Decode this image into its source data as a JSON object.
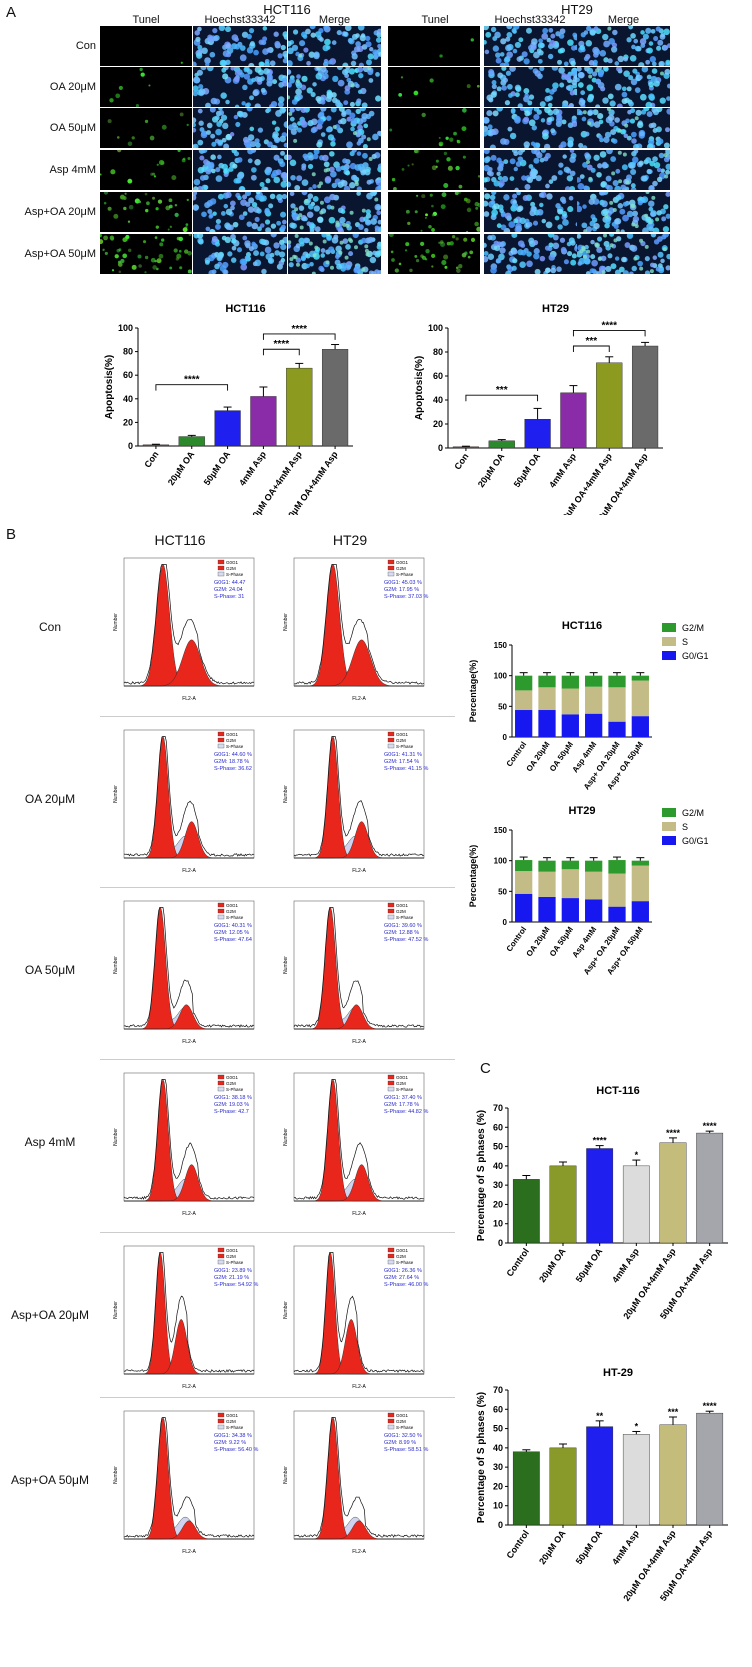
{
  "panelA": {
    "letter": "A",
    "lines": [
      {
        "title": "HCT116",
        "cols": [
          "Tunel",
          "Hoechst33342",
          "Merge"
        ]
      },
      {
        "title": "HT29",
        "cols": [
          "Tunel",
          "Hoechst33342",
          "Merge"
        ]
      }
    ],
    "rows": [
      "Con",
      "OA 20μM",
      "OA 50μM",
      "Asp 4mM",
      "Asp+OA 20μM",
      "Asp+OA 50μM"
    ]
  },
  "apoptosis": [
    {
      "title": "HCT116",
      "ylabel": "Apoptosis(%)",
      "ylim": [
        0,
        100
      ],
      "yticks": [
        0,
        20,
        40,
        60,
        80,
        100
      ],
      "categories": [
        "Con",
        "20μM OA",
        "50μM OA",
        "4mM Asp",
        "20μM OA+4mM Asp",
        "50μM OA+4mM Asp"
      ],
      "values": [
        1,
        8,
        30,
        42,
        66,
        82
      ],
      "errors": [
        0.5,
        1,
        3,
        8,
        4,
        4
      ],
      "colors": [
        "#d62020",
        "#2c8a2c",
        "#1f1fef",
        "#8a2ba8",
        "#8c9a20",
        "#6a6a6a"
      ],
      "brackets": [
        {
          "from": 0,
          "to": 2,
          "label": "****",
          "level": 52
        },
        {
          "from": 3,
          "to": 4,
          "label": "****",
          "level": 82
        },
        {
          "from": 3,
          "to": 5,
          "label": "****",
          "level": 95
        }
      ]
    },
    {
      "title": "HT29",
      "ylabel": "Apoptosis(%)",
      "ylim": [
        0,
        100
      ],
      "yticks": [
        0,
        20,
        40,
        60,
        80,
        100
      ],
      "categories": [
        "Con",
        "20μM OA",
        "50μM OA",
        "4mM Asp",
        "20μM OA+4mM Asp",
        "50μM OA+4mM Asp"
      ],
      "values": [
        1,
        6,
        24,
        46,
        71,
        85
      ],
      "errors": [
        0.5,
        1,
        9,
        6,
        5,
        3
      ],
      "colors": [
        "#d62020",
        "#2c8a2c",
        "#1f1fef",
        "#8a2ba8",
        "#8c9a20",
        "#6a6a6a"
      ],
      "brackets": [
        {
          "from": 0,
          "to": 2,
          "label": "***",
          "level": 44
        },
        {
          "from": 3,
          "to": 4,
          "label": "***",
          "level": 85
        },
        {
          "from": 3,
          "to": 5,
          "label": "****",
          "level": 98
        }
      ]
    }
  ],
  "panelB": {
    "letter": "B",
    "cols": [
      "HCT116",
      "HT29"
    ],
    "rows": [
      "Con",
      "OA 20μM",
      "OA 50μM",
      "Asp 4mM",
      "Asp+OA 20μM",
      "Asp+OA 50μM"
    ],
    "legend": [
      "G0G1",
      "G2M",
      "S-Phase"
    ],
    "xlabel": "FL2-A",
    "ylabel": "Number",
    "stats": [
      [
        "G0G1: 44.47",
        "G2M: 24.04",
        "S-Phase: 31",
        "G0G1: 45.03 %",
        "G2M: 17.95 %",
        "S-Phase: 37.03 %"
      ],
      [
        "G0G1: 44.60 %",
        "G2M: 18.78 %",
        "S-Phase: 36.62",
        "G0G1: 41.31 %",
        "G2M: 17.54 %",
        "S-Phase: 41.15 %"
      ],
      [
        "G0G1: 40.31 %",
        "G2M: 12.05 %",
        "S-Phase: 47.64",
        "G0G1: 39.60 %",
        "G2M: 12.88 %",
        "S-Phase: 47.52 %"
      ],
      [
        "G0G1: 38.18 %",
        "G2M: 19.03 %",
        "S-Phase: 42.7",
        "G0G1: 37.40 %",
        "G2M: 17.78 %",
        "S-Phase: 44.82 %"
      ],
      [
        "G0G1: 23.89 %",
        "G2M: 21.19 %",
        "S-Phase: 54.92 %",
        "G0G1: 26.36 %",
        "G2M: 27.64 %",
        "S-Phase: 46.00 %"
      ],
      [
        "G0G1: 34.38 %",
        "G2M: 9.22 %",
        "S-Phase: 56.40 %",
        "G0G1: 32.50 %",
        "G2M: 8.99 %",
        "S-Phase: 58.51 %"
      ]
    ]
  },
  "stacked": [
    {
      "title": "HCT116",
      "ylabel": "Percentage(%)",
      "ylim": [
        0,
        150
      ],
      "yticks": [
        0,
        50,
        100,
        150
      ],
      "categories": [
        "Control",
        "OA 20μM",
        "OA 50μM",
        "Asp 4mM",
        "Asp+ OA 20μM",
        "Asp+ OA 50μM"
      ],
      "legend": [
        "G2/M",
        "S",
        "G0/G1"
      ],
      "g0g1": [
        44,
        44,
        37,
        38,
        25,
        34
      ],
      "s": [
        32,
        37,
        42,
        44,
        56,
        58
      ],
      "g2m": [
        24,
        19,
        21,
        18,
        19,
        8
      ]
    },
    {
      "title": "HT29",
      "ylabel": "Percentage(%)",
      "ylim": [
        0,
        150
      ],
      "yticks": [
        0,
        50,
        100,
        150
      ],
      "categories": [
        "Control",
        "OA 20μM",
        "OA 50μM",
        "Asp 4mM",
        "Asp+ OA 20μM",
        "Asp+ OA 50μM"
      ],
      "legend": [
        "G2/M",
        "S",
        "G0/G1"
      ],
      "g0g1": [
        46,
        41,
        39,
        37,
        25,
        34
      ],
      "s": [
        37,
        41,
        47,
        45,
        54,
        58
      ],
      "g2m": [
        18,
        18,
        14,
        18,
        22,
        8
      ]
    }
  ],
  "panelC": {
    "letter": "C",
    "charts": [
      {
        "title": "HCT-116",
        "ylabel": "Percentage of S phases (%)",
        "ylim": [
          0,
          70
        ],
        "yticks": [
          0,
          10,
          20,
          30,
          40,
          50,
          60,
          70
        ],
        "categories": [
          "Control",
          "20μM OA",
          "50μM OA",
          "4mM Asp",
          "20μM OA+4mM Asp",
          "50μM OA+4mM Asp"
        ],
        "values": [
          33,
          40,
          49,
          40,
          52,
          57
        ],
        "errors": [
          2,
          2,
          1.5,
          3,
          2.5,
          1
        ],
        "sig": [
          "",
          "",
          "****",
          "*",
          "****",
          "****"
        ],
        "colors": [
          "#2a6e1e",
          "#8a9a2a",
          "#1f1fef",
          "#dcdcdc",
          "#c4bc7a",
          "#a4a6ac"
        ]
      },
      {
        "title": "HT-29",
        "ylabel": "Percentage of S phases (%)",
        "ylim": [
          0,
          70
        ],
        "yticks": [
          0,
          10,
          20,
          30,
          40,
          50,
          60,
          70
        ],
        "categories": [
          "Control",
          "20μM OA",
          "50μM OA",
          "4mM Asp",
          "20μM OA+4mM Asp",
          "50μM OA+4mM Asp"
        ],
        "values": [
          38,
          40,
          51,
          47,
          52,
          58
        ],
        "errors": [
          1,
          2,
          3,
          1.5,
          4,
          1
        ],
        "sig": [
          "",
          "",
          "**",
          "*",
          "***",
          "****"
        ],
        "colors": [
          "#2a6e1e",
          "#8a9a2a",
          "#1f1fef",
          "#dcdcdc",
          "#c4bc7a",
          "#a4a6ac"
        ]
      }
    ]
  },
  "chart_data": [
    {
      "type": "bar",
      "title": "HCT116",
      "ylabel": "Apoptosis(%)",
      "categories": [
        "Con",
        "20μM OA",
        "50μM OA",
        "4mM Asp",
        "20μM OA+4mM Asp",
        "50μM OA+4mM Asp"
      ],
      "values": [
        1,
        8,
        30,
        42,
        66,
        82
      ],
      "ylim": [
        0,
        100
      ]
    },
    {
      "type": "bar",
      "title": "HT29",
      "ylabel": "Apoptosis(%)",
      "categories": [
        "Con",
        "20μM OA",
        "50μM OA",
        "4mM Asp",
        "20μM OA+4mM Asp",
        "50μM OA+4mM Asp"
      ],
      "values": [
        1,
        6,
        24,
        46,
        71,
        85
      ],
      "ylim": [
        0,
        100
      ]
    },
    {
      "type": "bar",
      "title": "HCT116",
      "ylabel": "Percentage(%)",
      "categories": [
        "Control",
        "OA 20μM",
        "OA 50μM",
        "Asp 4mM",
        "Asp+ OA 20μM",
        "Asp+ OA 50μM"
      ],
      "series": [
        {
          "name": "G0/G1",
          "values": [
            44,
            44,
            37,
            38,
            25,
            34
          ]
        },
        {
          "name": "S",
          "values": [
            32,
            37,
            42,
            44,
            56,
            58
          ]
        },
        {
          "name": "G2/M",
          "values": [
            24,
            19,
            21,
            18,
            19,
            8
          ]
        }
      ],
      "ylim": [
        0,
        150
      ]
    },
    {
      "type": "bar",
      "title": "HT29",
      "ylabel": "Percentage(%)",
      "categories": [
        "Control",
        "OA 20μM",
        "OA 50μM",
        "Asp 4mM",
        "Asp+ OA 20μM",
        "Asp+ OA 50μM"
      ],
      "series": [
        {
          "name": "G0/G1",
          "values": [
            46,
            41,
            39,
            37,
            25,
            34
          ]
        },
        {
          "name": "S",
          "values": [
            37,
            41,
            47,
            45,
            54,
            58
          ]
        },
        {
          "name": "G2/M",
          "values": [
            18,
            18,
            14,
            18,
            22,
            8
          ]
        }
      ],
      "ylim": [
        0,
        150
      ]
    },
    {
      "type": "bar",
      "title": "HCT-116",
      "ylabel": "Percentage of S phases (%)",
      "categories": [
        "Control",
        "20μM OA",
        "50μM OA",
        "4mM Asp",
        "20μM OA+4mM Asp",
        "50μM OA+4mM Asp"
      ],
      "values": [
        33,
        40,
        49,
        40,
        52,
        57
      ],
      "ylim": [
        0,
        70
      ]
    },
    {
      "type": "bar",
      "title": "HT-29",
      "ylabel": "Percentage of S phases (%)",
      "categories": [
        "Control",
        "20μM OA",
        "50μM OA",
        "4mM Asp",
        "20μM OA+4mM Asp",
        "50μM OA+4mM Asp"
      ],
      "values": [
        38,
        40,
        51,
        47,
        52,
        58
      ],
      "ylim": [
        0,
        70
      ]
    }
  ]
}
